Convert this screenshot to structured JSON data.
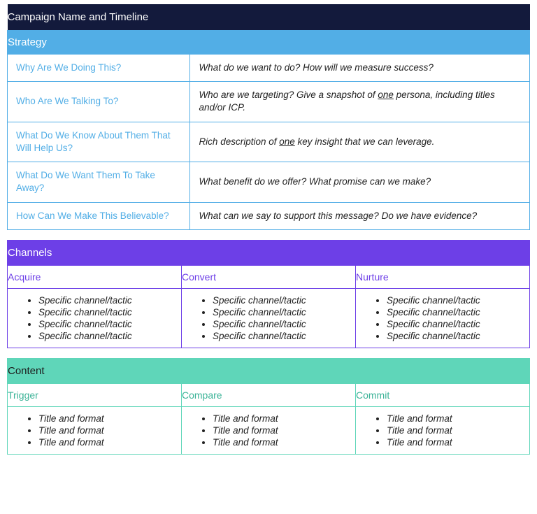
{
  "strategy": {
    "main_title": "Campaign Name and Timeline",
    "section_title": "Strategy",
    "title_bg": "#131a3c",
    "title_color": "#ffffff",
    "sub_bg": "#52aee6",
    "sub_color": "#ffffff",
    "border_color": "#52aee6",
    "question_color": "#52aee6",
    "answer_color": "#222222",
    "title_fontsize": 15,
    "body_fontsize": 13.5,
    "rows": [
      {
        "q": "Why Are We Doing This?",
        "a": "What do we want to do?  How will we measure success?"
      },
      {
        "q": "Who Are We Talking To?",
        "a_pre": "Who are we targeting? Give a snapshot of ",
        "a_u": "one",
        "a_post": " persona, including titles and/or ICP."
      },
      {
        "q": "What Do We Know About Them That Will Help Us?",
        "a_pre": "Rich description of ",
        "a_u": "one",
        "a_post": " key insight that we can leverage."
      },
      {
        "q": "What Do We Want Them To Take Away?",
        "a": "What benefit do we offer?  What promise can we make?"
      },
      {
        "q": "How Can We Make This Believable?",
        "a": "What can we say to support this message?  Do we have evidence?"
      }
    ]
  },
  "channels": {
    "section_title": "Channels",
    "title_bg": "#6d3fe7",
    "title_color": "#ffffff",
    "border_color": "#6d3fe7",
    "col_label_color": "#6d3fe7",
    "item_text": "Specific channel/tactic",
    "items_per_col": 4,
    "columns": [
      {
        "label": "Acquire"
      },
      {
        "label": "Convert"
      },
      {
        "label": "Nurture"
      }
    ]
  },
  "content": {
    "section_title": "Content",
    "title_bg": "#5fd6b9",
    "title_color": "#1c1c1c",
    "border_color": "#5fd6b9",
    "col_label_color": "#3bb397",
    "item_text": "Title and format",
    "items_per_col": 3,
    "columns": [
      {
        "label": "Trigger"
      },
      {
        "label": "Compare"
      },
      {
        "label": "Commit"
      }
    ]
  }
}
